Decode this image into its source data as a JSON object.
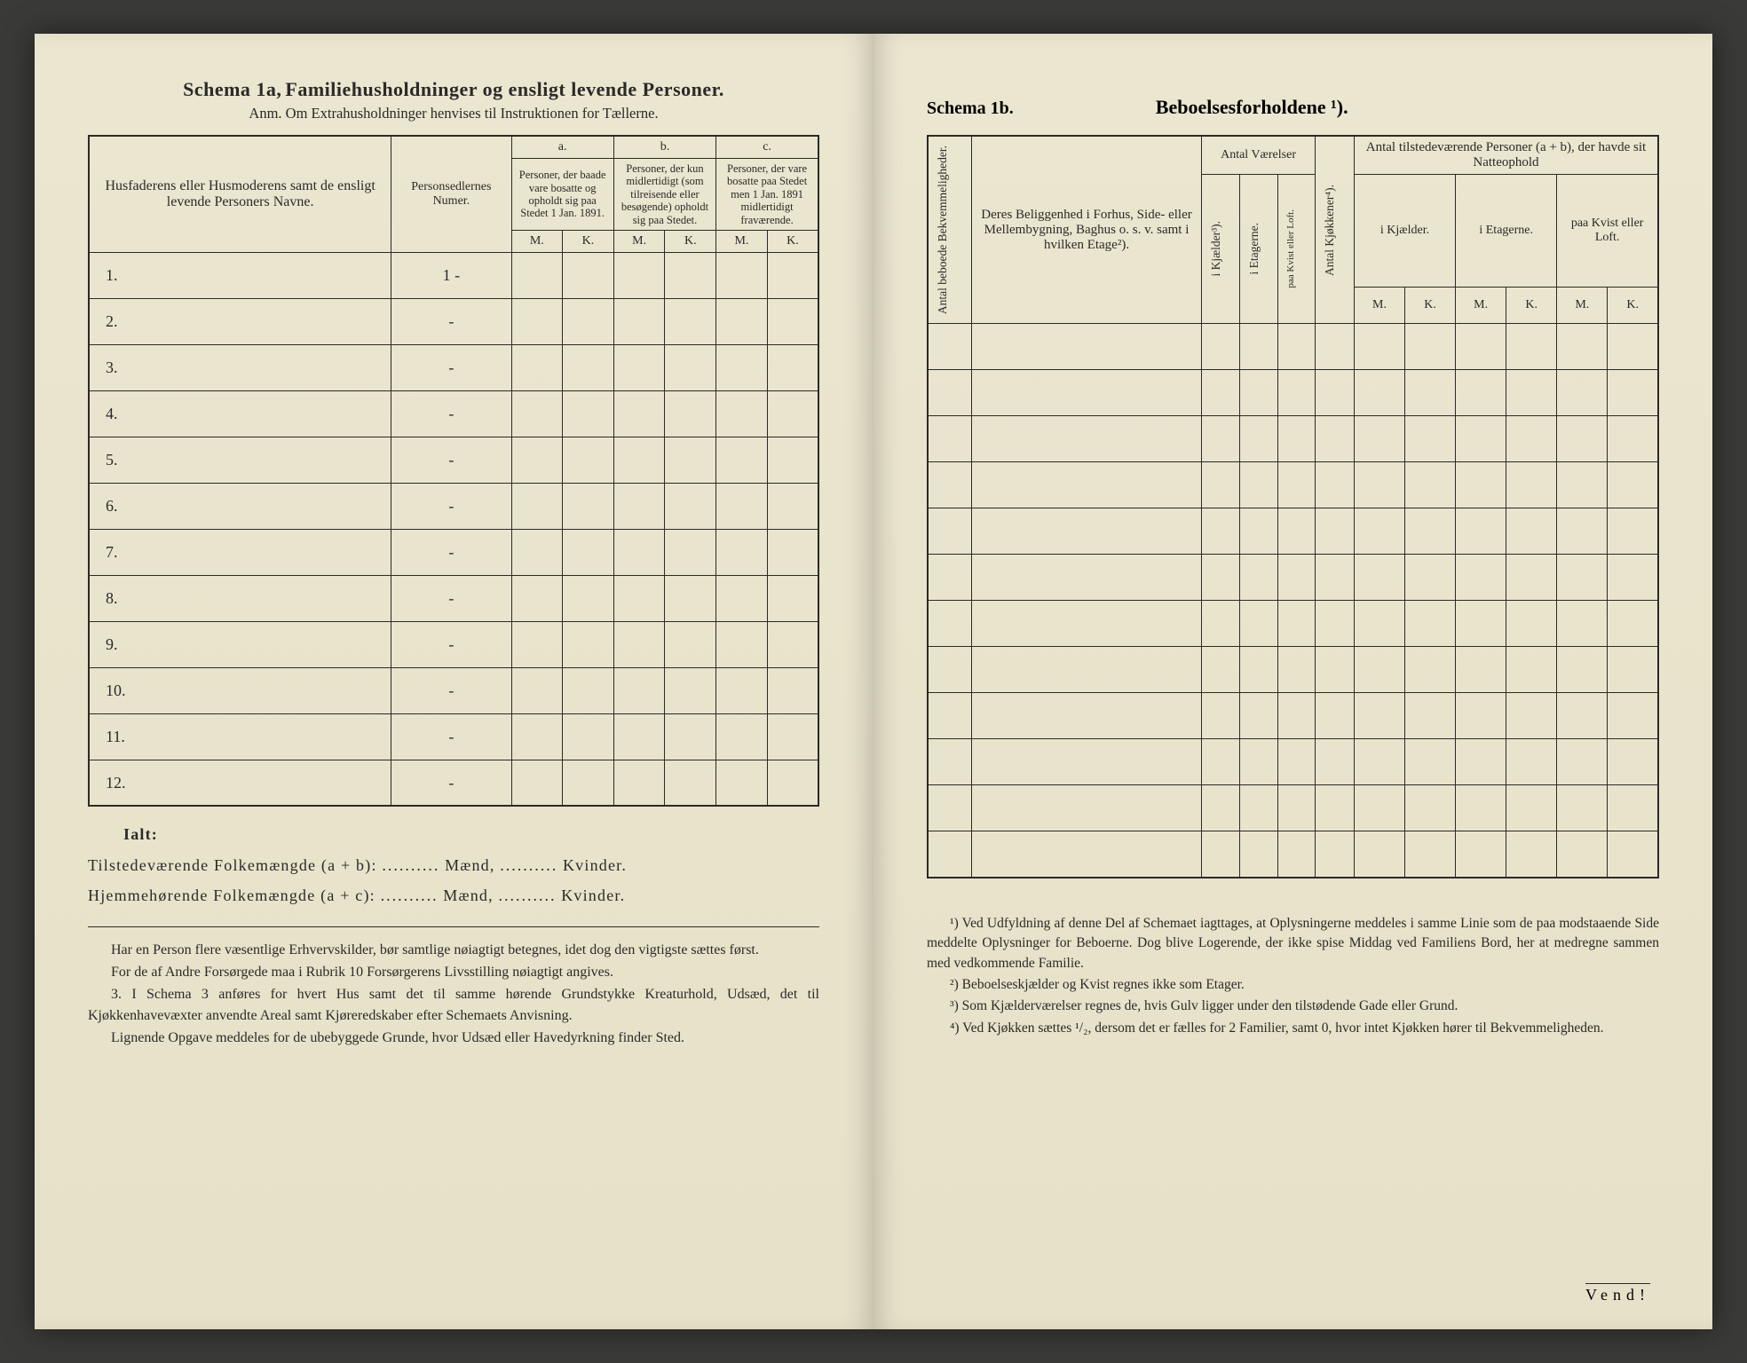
{
  "page_bg": "#e8e4cc",
  "ink": "#2a2a28",
  "left": {
    "schema_label": "Schema 1a,",
    "title": "Familiehusholdninger og ensligt levende Personer.",
    "subtitle": "Anm. Om Extrahusholdninger henvises til Instruktionen for Tællerne.",
    "col1": "Husfaderens eller Husmoderens samt de ensligt levende Personers Navne.",
    "col2": "Personsedlernes Numer.",
    "groups": {
      "a": {
        "letter": "a.",
        "text": "Personer, der baade vare bosatte og opholdt sig paa Stedet 1 Jan. 1891."
      },
      "b": {
        "letter": "b.",
        "text": "Personer, der kun midlertidigt (som tilreisende eller besøgende) opholdt sig paa Stedet."
      },
      "c": {
        "letter": "c.",
        "text": "Personer, der vare bosatte paa Stedet men 1 Jan. 1891 midlertidigt fraværende."
      }
    },
    "mk": {
      "m": "M.",
      "k": "K."
    },
    "rows": [
      "1.",
      "2.",
      "3.",
      "4.",
      "5.",
      "6.",
      "7.",
      "8.",
      "9.",
      "10.",
      "11.",
      "12."
    ],
    "row_marks": [
      "1 -",
      "-",
      "-",
      "-",
      "-",
      "-",
      "-",
      "-",
      "-",
      "-",
      "-",
      "-"
    ],
    "summary": {
      "ialt": "Ialt:",
      "line1_a": "Tilstedeværende Folkemængde (a + b):",
      "line2_a": "Hjemmehørende Folkemængde (a + c):",
      "maend": "Mænd,",
      "kvinder": "Kvinder.",
      "dots": ".........."
    },
    "notes": [
      "Har en Person flere væsentlige Erhvervskilder, bør samtlige nøiagtigt betegnes, idet dog den vigtigste sættes først.",
      "For de af Andre Forsørgede maa i Rubrik 10 Forsørgerens Livsstilling nøiagtigt angives.",
      "3. I Schema 3 anføres for hvert Hus samt det til samme hørende Grundstykke Kreaturhold, Udsæd, det til Kjøkkenhavevæxter anvendte Areal samt Kjøreredskaber efter Schemaets Anvisning.",
      "Lignende Opgave meddeles for de ubebyggede Grunde, hvor Udsæd eller Havedyrkning finder Sted."
    ]
  },
  "right": {
    "schema_label": "Schema 1b.",
    "title": "Beboelsesforholdene ¹).",
    "col_vert1": "Antal beboede Bekvemmeligheder.",
    "col2": "Deres Beliggenhed i Forhus, Side- eller Mellembygning, Baghus o. s. v. samt i hvilken Etage²).",
    "rooms_label": "Antal Værelser",
    "rooms_sub": [
      "i Kjælder³).",
      "i Etagerne.",
      "paa Kvist eller Loft."
    ],
    "kitchens": "Antal Kjøkkener⁴).",
    "persons_label": "Antal tilstedeværende Personer (a + b), der havde sit Natteophold",
    "persons_sub": [
      "i Kjælder.",
      "i Etagerne.",
      "paa Kvist eller Loft."
    ],
    "mk": {
      "m": "M.",
      "k": "K."
    },
    "row_count": 12,
    "footnotes": [
      "¹) Ved Udfyldning af denne Del af Schemaet iagttages, at Oplysningerne meddeles i samme Linie som de paa modstaaende Side meddelte Oplysninger for Beboerne. Dog blive Logerende, der ikke spise Middag ved Familiens Bord, her at medregne sammen med vedkommende Familie.",
      "²) Beboelseskjælder og Kvist regnes ikke som Etager.",
      "³) Som Kjælderværelser regnes de, hvis Gulv ligger under den tilstødende Gade eller Grund.",
      "⁴) Ved Kjøkken sættes ¹/₂, dersom det er fælles for 2 Familier, samt 0, hvor intet Kjøkken hører til Bekvemmeligheden."
    ],
    "vend": "Vend!"
  }
}
